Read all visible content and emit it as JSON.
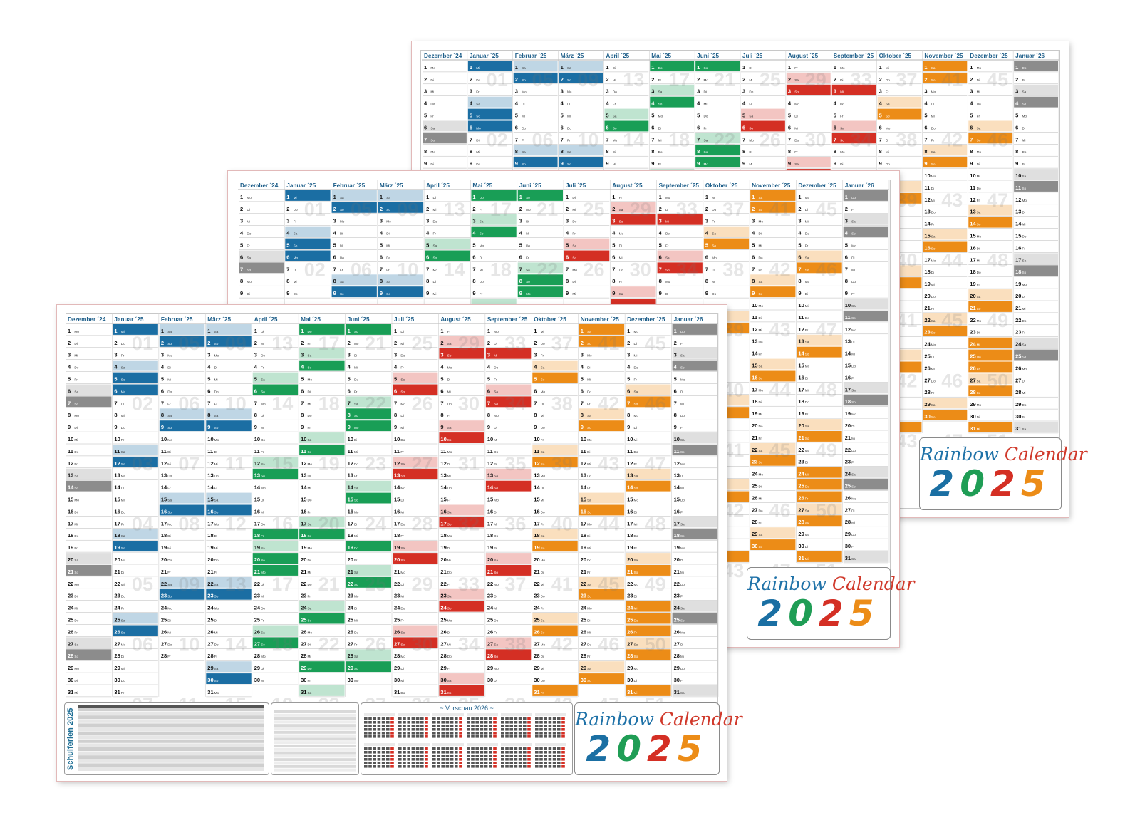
{
  "calendar": {
    "months": [
      "Dezember ´24",
      "Januar ´25",
      "Februar ´25",
      "März ´25",
      "April ´25",
      "Mai ´25",
      "Juni ´25",
      "Juli ´25",
      "August ´25",
      "September ´25",
      "Oktober ´25",
      "November ´25",
      "Dezember ´25",
      "Januar ´26"
    ],
    "colors": {
      "dez24": "#8c8c8c",
      "januar": "#1b6ea3",
      "februar": "#1b6ea3",
      "maerz": "#1b6ea3",
      "april": "#199e56",
      "mai": "#199e56",
      "juni": "#199e56",
      "juli": "#d42f24",
      "august": "#d42f24",
      "september": "#d42f24",
      "oktober": "#ec8c17",
      "november": "#ec8c17",
      "dezember": "#ec8c17",
      "jan26": "#8c8c8c"
    },
    "header_color": "#1f5f8a"
  },
  "bottom": {
    "schulferien_label": "Schulferien 2025",
    "vorschau_title": "~ Vorschau 2026 ~"
  },
  "logo": {
    "title_parts": [
      {
        "text": "Rainbow",
        "color": "#1f72a8"
      },
      {
        "text": "Calendar",
        "color": "#d0392b"
      }
    ],
    "year_digits": [
      {
        "text": "2",
        "color": "#1a6fa3"
      },
      {
        "text": "0",
        "color": "#1f9d55"
      },
      {
        "text": "2",
        "color": "#d42f24"
      },
      {
        "text": "5",
        "color": "#ec8c17"
      }
    ]
  }
}
